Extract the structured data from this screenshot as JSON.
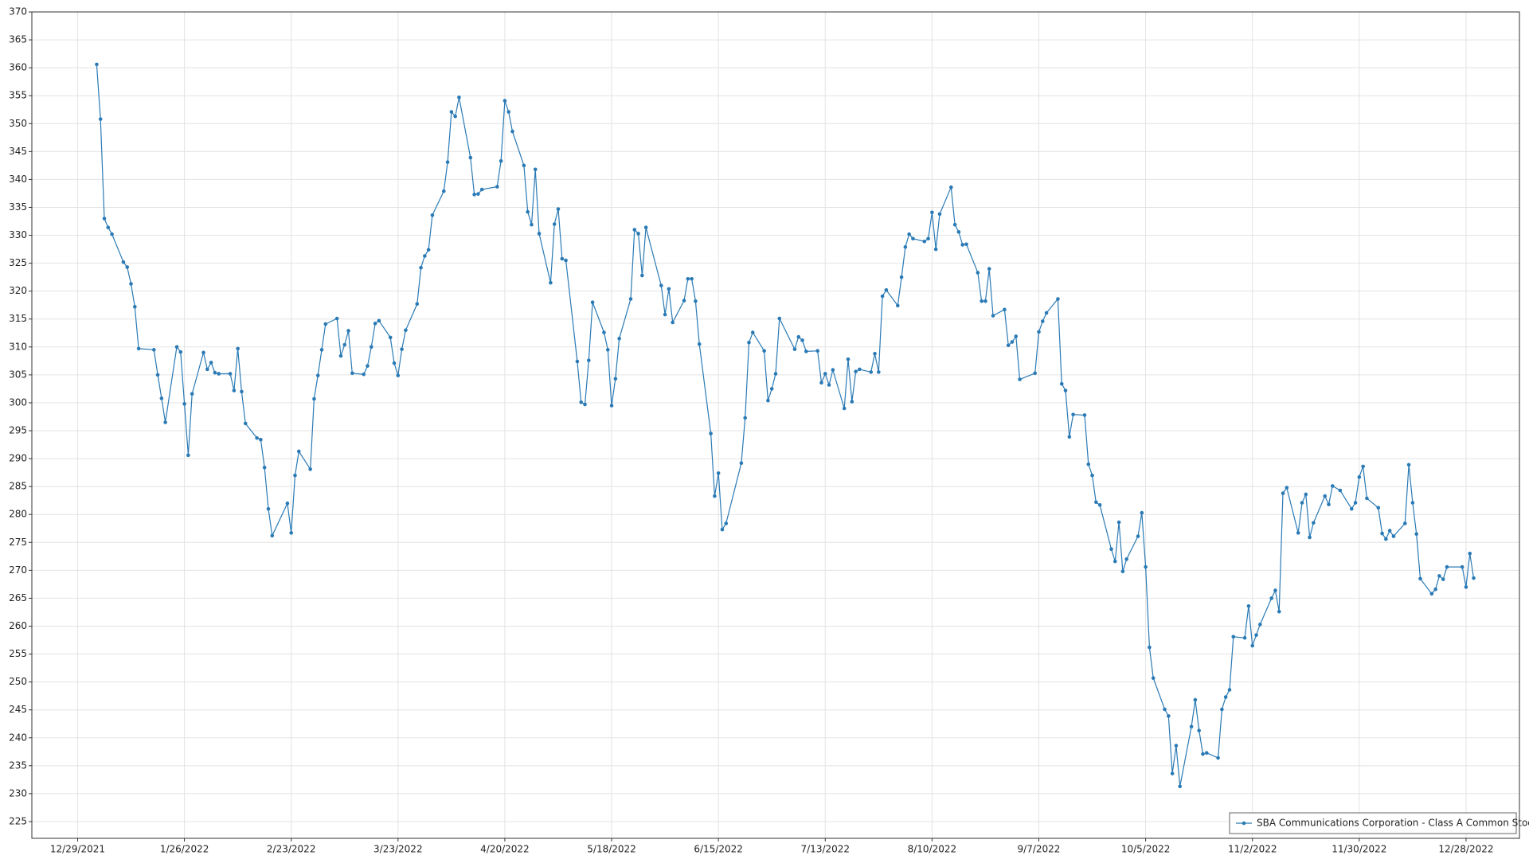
{
  "chart_data": {
    "type": "line",
    "xlim": [
      "12/17/2021",
      "1/11/2023"
    ],
    "xticks": [
      "12/29/2021",
      "1/26/2022",
      "2/23/2022",
      "3/23/2022",
      "4/20/2022",
      "5/18/2022",
      "6/15/2022",
      "7/13/2022",
      "8/10/2022",
      "9/7/2022",
      "10/5/2022",
      "11/2/2022",
      "11/30/2022",
      "12/28/2022"
    ],
    "ylim": [
      222,
      370
    ],
    "yticks": [
      225,
      230,
      235,
      240,
      245,
      250,
      255,
      260,
      265,
      270,
      275,
      280,
      285,
      290,
      295,
      300,
      305,
      310,
      315,
      320,
      325,
      330,
      335,
      340,
      345,
      350,
      355,
      360,
      365,
      370
    ],
    "grid": true,
    "legend": "lower right",
    "x": [
      "1/3/2022",
      "1/4/2022",
      "1/5/2022",
      "1/6/2022",
      "1/7/2022",
      "1/10/2022",
      "1/11/2022",
      "1/12/2022",
      "1/13/2022",
      "1/14/2022",
      "1/18/2022",
      "1/19/2022",
      "1/20/2022",
      "1/21/2022",
      "1/24/2022",
      "1/25/2022",
      "1/26/2022",
      "1/27/2022",
      "1/28/2022",
      "1/31/2022",
      "2/1/2022",
      "2/2/2022",
      "2/3/2022",
      "2/4/2022",
      "2/7/2022",
      "2/8/2022",
      "2/9/2022",
      "2/10/2022",
      "2/11/2022",
      "2/14/2022",
      "2/15/2022",
      "2/16/2022",
      "2/17/2022",
      "2/18/2022",
      "2/22/2022",
      "2/23/2022",
      "2/24/2022",
      "2/25/2022",
      "2/28/2022",
      "3/1/2022",
      "3/2/2022",
      "3/3/2022",
      "3/4/2022",
      "3/7/2022",
      "3/8/2022",
      "3/9/2022",
      "3/10/2022",
      "3/11/2022",
      "3/14/2022",
      "3/15/2022",
      "3/16/2022",
      "3/17/2022",
      "3/18/2022",
      "3/21/2022",
      "3/22/2022",
      "3/23/2022",
      "3/24/2022",
      "3/25/2022",
      "3/28/2022",
      "3/29/2022",
      "3/30/2022",
      "3/31/2022",
      "4/1/2022",
      "4/4/2022",
      "4/5/2022",
      "4/6/2022",
      "4/7/2022",
      "4/8/2022",
      "4/11/2022",
      "4/12/2022",
      "4/13/2022",
      "4/14/2022",
      "4/18/2022",
      "4/19/2022",
      "4/20/2022",
      "4/21/2022",
      "4/22/2022",
      "4/25/2022",
      "4/26/2022",
      "4/27/2022",
      "4/28/2022",
      "4/29/2022",
      "5/2/2022",
      "5/3/2022",
      "5/4/2022",
      "5/5/2022",
      "5/6/2022",
      "5/9/2022",
      "5/10/2022",
      "5/11/2022",
      "5/12/2022",
      "5/13/2022",
      "5/16/2022",
      "5/17/2022",
      "5/18/2022",
      "5/19/2022",
      "5/20/2022",
      "5/23/2022",
      "5/24/2022",
      "5/25/2022",
      "5/26/2022",
      "5/27/2022",
      "5/31/2022",
      "6/1/2022",
      "6/2/2022",
      "6/3/2022",
      "6/6/2022",
      "6/7/2022",
      "6/8/2022",
      "6/9/2022",
      "6/10/2022",
      "6/13/2022",
      "6/14/2022",
      "6/15/2022",
      "6/16/2022",
      "6/17/2022",
      "6/21/2022",
      "6/22/2022",
      "6/23/2022",
      "6/24/2022",
      "6/27/2022",
      "6/28/2022",
      "6/29/2022",
      "6/30/2022",
      "7/1/2022",
      "7/5/2022",
      "7/6/2022",
      "7/7/2022",
      "7/8/2022",
      "7/11/2022",
      "7/12/2022",
      "7/13/2022",
      "7/14/2022",
      "7/15/2022",
      "7/18/2022",
      "7/19/2022",
      "7/20/2022",
      "7/21/2022",
      "7/22/2022",
      "7/25/2022",
      "7/26/2022",
      "7/27/2022",
      "7/28/2022",
      "7/29/2022",
      "8/1/2022",
      "8/2/2022",
      "8/3/2022",
      "8/4/2022",
      "8/5/2022",
      "8/8/2022",
      "8/9/2022",
      "8/10/2022",
      "8/11/2022",
      "8/12/2022",
      "8/15/2022",
      "8/16/2022",
      "8/17/2022",
      "8/18/2022",
      "8/19/2022",
      "8/22/2022",
      "8/23/2022",
      "8/24/2022",
      "8/25/2022",
      "8/26/2022",
      "8/29/2022",
      "8/30/2022",
      "8/31/2022",
      "9/1/2022",
      "9/2/2022",
      "9/6/2022",
      "9/7/2022",
      "9/8/2022",
      "9/9/2022",
      "9/12/2022",
      "9/13/2022",
      "9/14/2022",
      "9/15/2022",
      "9/16/2022",
      "9/19/2022",
      "9/20/2022",
      "9/21/2022",
      "9/22/2022",
      "9/23/2022",
      "9/26/2022",
      "9/27/2022",
      "9/28/2022",
      "9/29/2022",
      "9/30/2022",
      "10/3/2022",
      "10/4/2022",
      "10/5/2022",
      "10/6/2022",
      "10/7/2022",
      "10/10/2022",
      "10/11/2022",
      "10/12/2022",
      "10/13/2022",
      "10/14/2022",
      "10/17/2022",
      "10/18/2022",
      "10/19/2022",
      "10/20/2022",
      "10/21/2022",
      "10/24/2022",
      "10/25/2022",
      "10/26/2022",
      "10/27/2022",
      "10/28/2022",
      "10/31/2022",
      "11/1/2022",
      "11/2/2022",
      "11/3/2022",
      "11/4/2022",
      "11/7/2022",
      "11/8/2022",
      "11/9/2022",
      "11/10/2022",
      "11/11/2022",
      "11/14/2022",
      "11/15/2022",
      "11/16/2022",
      "11/17/2022",
      "11/18/2022",
      "11/21/2022",
      "11/22/2022",
      "11/23/2022",
      "11/25/2022",
      "11/28/2022",
      "11/29/2022",
      "11/30/2022",
      "12/1/2022",
      "12/2/2022",
      "12/5/2022",
      "12/6/2022",
      "12/7/2022",
      "12/8/2022",
      "12/9/2022",
      "12/12/2022",
      "12/13/2022",
      "12/14/2022",
      "12/15/2022",
      "12/16/2022",
      "12/19/2022",
      "12/20/2022",
      "12/21/2022",
      "12/22/2022",
      "12/23/2022",
      "12/27/2022",
      "12/28/2022",
      "12/29/2022",
      "12/30/2022"
    ],
    "series": [
      {
        "name": "SBA Communications Corporation - Class A Common Stock",
        "color": "#2a7ab5",
        "values": [
          360.6,
          350.8,
          333,
          331.4,
          330.2,
          325.2,
          324.3,
          321.3,
          317.2,
          309.7,
          309.5,
          305,
          300.8,
          296.5,
          310,
          309.1,
          299.8,
          290.6,
          301.6,
          309,
          306,
          307.2,
          305.4,
          305.2,
          305.2,
          302.2,
          309.7,
          302,
          296.3,
          293.7,
          293.4,
          288.4,
          281,
          276.2,
          282,
          276.7,
          287,
          291.3,
          288.1,
          300.7,
          304.9,
          309.5,
          314.1,
          315.1,
          308.4,
          310.4,
          312.9,
          305.3,
          305.1,
          306.6,
          310,
          314.2,
          314.7,
          311.7,
          307.1,
          304.9,
          309.6,
          313,
          317.7,
          324.2,
          326.3,
          327.4,
          333.6,
          337.9,
          343.1,
          352.1,
          351.3,
          354.7,
          343.9,
          337.3,
          337.4,
          338.2,
          338.7,
          343.3,
          354.1,
          352.1,
          348.6,
          342.5,
          334.2,
          331.9,
          341.8,
          330.3,
          321.5,
          332,
          334.7,
          325.8,
          325.5,
          307.4,
          300.1,
          299.7,
          307.6,
          318,
          312.6,
          309.5,
          299.5,
          304.3,
          311.5,
          318.6,
          331,
          330.3,
          322.8,
          331.4,
          321,
          315.8,
          320.4,
          314.4,
          318.3,
          322.2,
          322.2,
          318.2,
          310.5,
          294.5,
          283.3,
          287.4,
          277.3,
          278.4,
          289.2,
          297.3,
          310.8,
          312.6,
          309.3,
          300.4,
          302.5,
          305.2,
          315.1,
          309.6,
          311.8,
          311.2,
          309.2,
          309.3,
          303.6,
          305.2,
          303.2,
          305.9,
          299,
          307.8,
          300.2,
          305.6,
          306,
          305.5,
          308.8,
          305.5,
          319.1,
          320.2,
          317.4,
          322.5,
          327.9,
          330.2,
          329.4,
          328.9,
          329.4,
          334.1,
          327.5,
          333.8,
          338.6,
          331.9,
          330.6,
          328.3,
          328.4,
          323.3,
          318.2,
          318.2,
          324,
          315.6,
          316.7,
          310.3,
          310.9,
          311.9,
          304.2,
          305.3,
          312.7,
          314.6,
          316.1,
          318.6,
          303.4,
          302.2,
          293.9,
          297.9,
          297.8,
          289,
          287,
          282.2,
          281.7,
          273.8,
          271.6,
          278.6,
          269.8,
          272,
          276.1,
          280.3,
          270.6,
          256.2,
          250.7,
          245.1,
          243.9,
          233.6,
          238.6,
          231.3,
          242,
          246.8,
          241.3,
          237.1,
          237.3,
          236.4,
          245.1,
          247.3,
          248.6,
          258.1,
          257.9,
          263.6,
          256.5,
          258.4,
          260.3,
          265,
          266.4,
          262.6,
          283.8,
          284.8,
          276.7,
          282.1,
          283.6,
          275.9,
          278.5,
          283.3,
          281.8,
          285.1,
          284.3,
          281,
          282.1,
          286.7,
          288.6,
          282.9,
          281.2,
          276.6,
          275.6,
          277.1,
          276.1,
          278.4,
          288.9,
          282.1,
          276.5,
          268.5,
          265.8,
          266.6,
          269,
          268.4,
          270.6,
          270.6,
          267,
          273,
          268.6
        ]
      }
    ]
  }
}
